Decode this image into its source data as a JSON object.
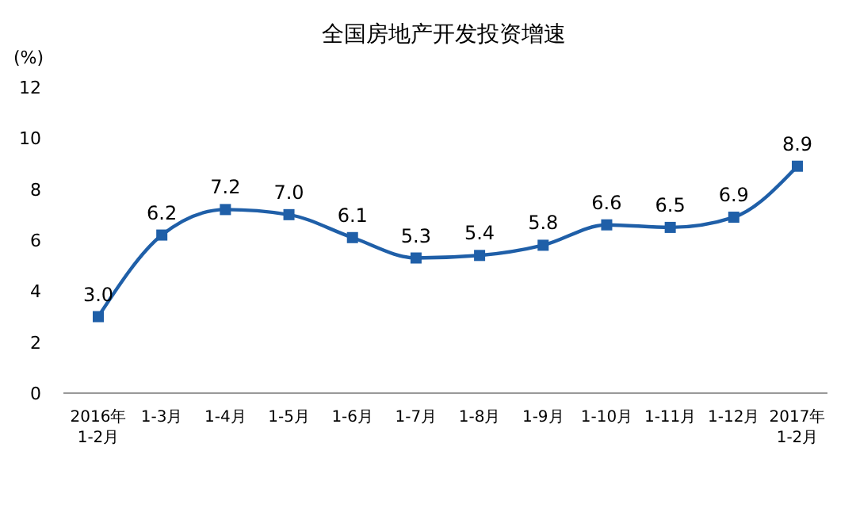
{
  "chart_data": {
    "type": "line",
    "title": "全国房地产开发投资增速",
    "ylabel": "(%)",
    "categories": [
      "2016年\n1-2月",
      "1-3月",
      "1-4月",
      "1-5月",
      "1-6月",
      "1-7月",
      "1-8月",
      "1-9月",
      "1-10月",
      "1-11月",
      "1-12月",
      "2017年\n1-2月"
    ],
    "series": [
      {
        "color": "#1f5fa8",
        "values": [
          3.0,
          6.2,
          7.2,
          7.0,
          6.1,
          5.3,
          5.4,
          5.8,
          6.6,
          6.5,
          6.9,
          8.9
        ],
        "value_labels": [
          "3.0",
          "6.2",
          "7.2",
          "7.0",
          "6.1",
          "5.3",
          "5.4",
          "5.8",
          "6.6",
          "6.5",
          "6.9",
          "8.9"
        ]
      }
    ],
    "ylim": [
      0,
      12
    ],
    "yticks": [
      0,
      2,
      4,
      6,
      8,
      10,
      12
    ],
    "marker": "square"
  }
}
